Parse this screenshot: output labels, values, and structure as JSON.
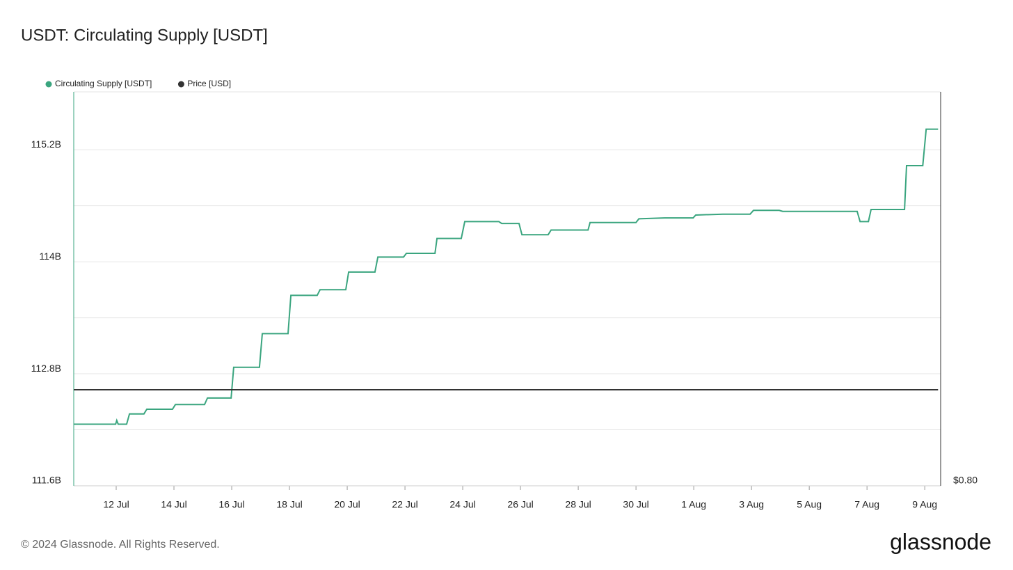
{
  "chart_data": {
    "type": "line",
    "title": "USDT: Circulating Supply [USDT]",
    "x": [
      10.53,
      11.98,
      12.02,
      12.07,
      12.36,
      12.46,
      12.96,
      13.06,
      13.95,
      14.05,
      15.06,
      15.16,
      15.98,
      16.07,
      16.96,
      17.06,
      17.95,
      18.05,
      18.96,
      19.06,
      19.95,
      20.05,
      20.96,
      21.06,
      21.95,
      22.05,
      23.04,
      23.11,
      23.95,
      24.07,
      25.25,
      25.35,
      25.95,
      26.05,
      26.96,
      27.06,
      28.34,
      28.41,
      30.0,
      30.1,
      30.99,
      31.98,
      32.07,
      33.01,
      33.95,
      34.07,
      34.96,
      35.08,
      37.66,
      37.76,
      38.05,
      38.14,
      39.3,
      39.37,
      39.93,
      40.05,
      40.46
    ],
    "series": [
      {
        "name": "Circulating Supply [USDT]",
        "color": "#3aa57f",
        "values": [
          112.26,
          112.26,
          112.3,
          112.26,
          112.26,
          112.37,
          112.37,
          112.42,
          112.42,
          112.47,
          112.47,
          112.54,
          112.54,
          112.87,
          112.87,
          113.23,
          113.23,
          113.64,
          113.64,
          113.7,
          113.7,
          113.89,
          113.89,
          114.05,
          114.05,
          114.09,
          114.09,
          114.25,
          114.25,
          114.43,
          114.43,
          114.41,
          114.41,
          114.29,
          114.29,
          114.34,
          114.34,
          114.42,
          114.42,
          114.46,
          114.47,
          114.47,
          114.5,
          114.51,
          114.51,
          114.55,
          114.55,
          114.54,
          114.54,
          114.43,
          114.43,
          114.56,
          114.56,
          115.03,
          115.03,
          115.42,
          115.42
        ]
      },
      {
        "name": "Price [USD]",
        "color": "#333333",
        "axis": "y2",
        "values": [
          1.0,
          1.0,
          1.0,
          1.0,
          1.0,
          1.0,
          1.0,
          1.0,
          1.0,
          1.0,
          1.0,
          1.0,
          1.0,
          1.0,
          1.0,
          1.0,
          1.0,
          1.0,
          1.0,
          1.0,
          1.0,
          1.0,
          1.0,
          1.0,
          1.0,
          1.0,
          1.0,
          1.0,
          1.0,
          1.0,
          1.0,
          1.0,
          1.0,
          1.0,
          1.0,
          1.0,
          1.0,
          1.0,
          1.0,
          1.0,
          1.0,
          1.0,
          1.0,
          1.0,
          1.0,
          1.0,
          1.0,
          1.0,
          1.0,
          1.0,
          1.0,
          1.0,
          1.0,
          1.0,
          1.0,
          1.0,
          1.0
        ]
      }
    ],
    "xlim": [
      10.53,
      40.55
    ],
    "xticks": [
      {
        "value": 12,
        "label": "12 Jul"
      },
      {
        "value": 14,
        "label": "14 Jul"
      },
      {
        "value": 16,
        "label": "16 Jul"
      },
      {
        "value": 18,
        "label": "18 Jul"
      },
      {
        "value": 20,
        "label": "20 Jul"
      },
      {
        "value": 22,
        "label": "22 Jul"
      },
      {
        "value": 24,
        "label": "24 Jul"
      },
      {
        "value": 26,
        "label": "26 Jul"
      },
      {
        "value": 28,
        "label": "28 Jul"
      },
      {
        "value": 30,
        "label": "30 Jul"
      },
      {
        "value": 32,
        "label": "1 Aug"
      },
      {
        "value": 34,
        "label": "3 Aug"
      },
      {
        "value": 36,
        "label": "5 Aug"
      },
      {
        "value": 38,
        "label": "7 Aug"
      },
      {
        "value": 40,
        "label": "9 Aug"
      }
    ],
    "ylim": [
      111.6,
      115.82
    ],
    "yticks": [
      {
        "value": 111.6,
        "label": "111.6B"
      },
      {
        "value": 112.8,
        "label": "112.8B"
      },
      {
        "value": 114,
        "label": "114B"
      },
      {
        "value": 115.2,
        "label": "115.2B"
      }
    ],
    "ygrid": [
      111.6,
      112.2,
      112.8,
      113.4,
      114,
      114.6,
      115.2
    ],
    "y2lim": [
      0.8,
      1.62
    ],
    "y2ticks": [
      {
        "value": 0.8,
        "label": "$0.80"
      }
    ],
    "grid": true,
    "legend": "top-left"
  },
  "footer": {
    "copyright": "© 2024 Glassnode. All Rights Reserved.",
    "logo": "glassnode"
  }
}
